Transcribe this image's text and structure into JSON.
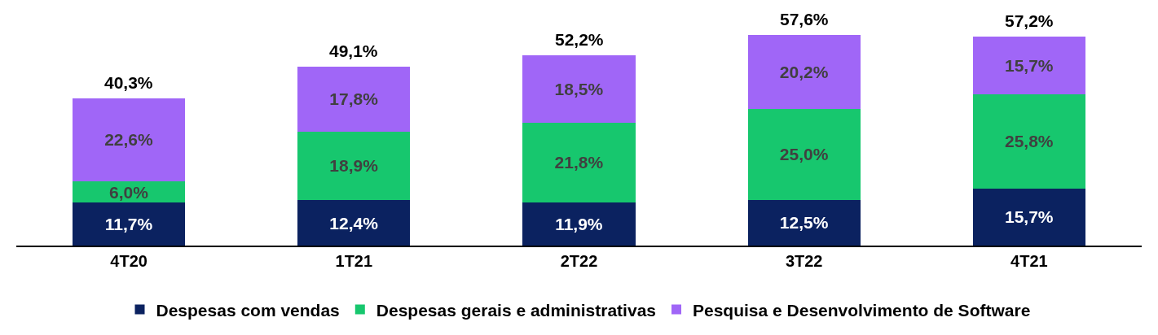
{
  "chart_data": {
    "type": "bar",
    "stacked": true,
    "legend": "bottom",
    "categories": [
      "4T20",
      "1T21",
      "2T22",
      "3T22",
      "4T21"
    ],
    "series": [
      {
        "name": "Despesas com vendas",
        "color": "#0b2260",
        "values": [
          11.7,
          12.4,
          11.9,
          12.5,
          15.7
        ],
        "value_labels": [
          "11,7%",
          "12,4%",
          "11,9%",
          "12,5%",
          "15,7%"
        ]
      },
      {
        "name": "Despesas gerais e administrativas",
        "color": "#17c76e",
        "values": [
          6.0,
          18.9,
          21.8,
          25.0,
          25.8
        ],
        "value_labels": [
          "6,0%",
          "18,9%",
          "21,8%",
          "25,0%",
          "25,8%"
        ]
      },
      {
        "name": "Pesquisa e Desenvolvimento de Software",
        "color": "#a066f7",
        "values": [
          22.6,
          17.8,
          18.5,
          20.2,
          15.7
        ],
        "value_labels": [
          "22,6%",
          "17,8%",
          "18,5%",
          "20,2%",
          "15,7%"
        ]
      }
    ],
    "totals": [
      "40,3%",
      "49,1%",
      "52,2%",
      "57,6%",
      "57,2%"
    ]
  }
}
